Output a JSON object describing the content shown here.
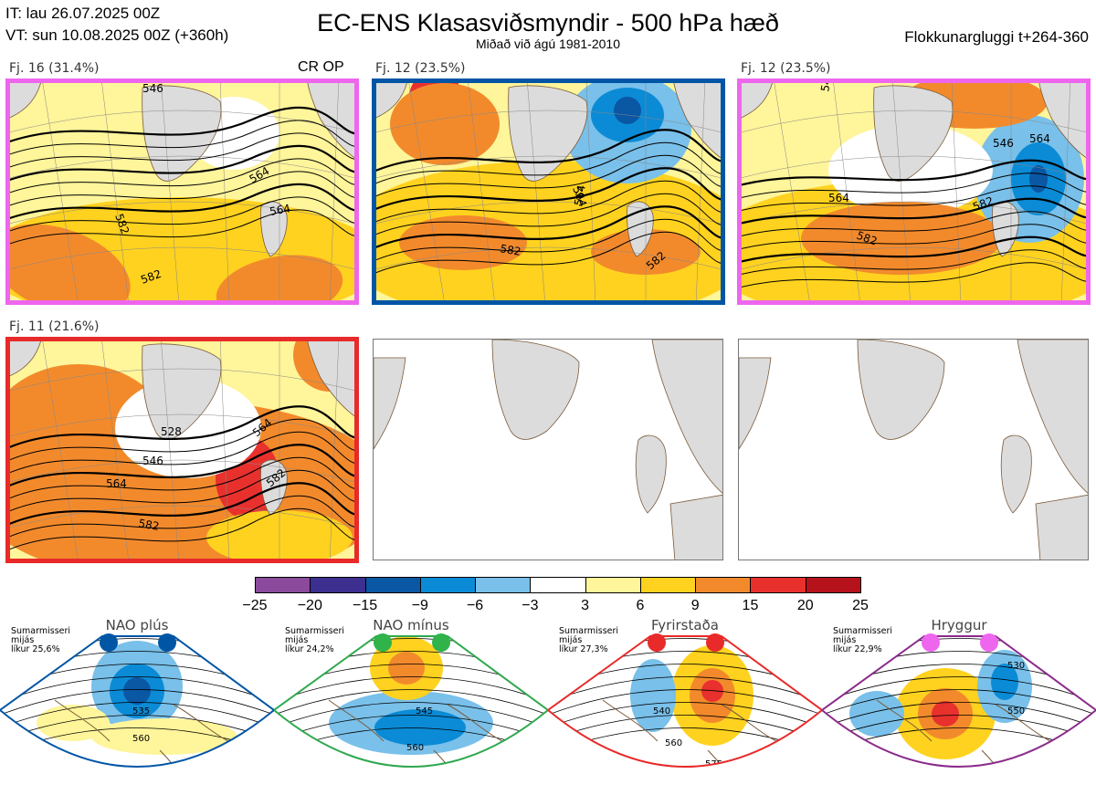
{
  "header": {
    "it": "IT: lau 26.07.2025 00Z",
    "vt": "VT: sun 10.08.2025 00Z  (+360h)",
    "title": "EC-ENS Klasasviðsmyndir - 500 hPa hæð",
    "subtitle": "Miðað við ágú 1981-2010",
    "cluster_window": "Flokkunargluggi t+264-360"
  },
  "colors": {
    "ocean": "#ffffff",
    "land": "#dcdcdc",
    "coast": "#7a5a3a",
    "contour": "#000000"
  },
  "panels": [
    {
      "label": "Fj. 16 (31.4%)",
      "flags": "CR OP",
      "frame_color": "#ee66ee",
      "contour_labels": [
        "546",
        "564",
        "582",
        "564",
        "582"
      ]
    },
    {
      "label": "Fj. 12 (23.5%)",
      "flags": "",
      "frame_color": "#0055a5",
      "contour_labels": [
        "564",
        "564",
        "582",
        "582"
      ]
    },
    {
      "label": "Fj. 12 (23.5%)",
      "flags": "",
      "frame_color": "#ee66ee",
      "contour_labels": [
        "546",
        "546",
        "564",
        "564",
        "582",
        "582"
      ]
    },
    {
      "label": "Fj. 11 (21.6%)",
      "flags": "",
      "frame_color": "#e82a2a",
      "contour_labels": [
        "528",
        "546",
        "564",
        "564",
        "582",
        "582"
      ]
    },
    {
      "label": "",
      "flags": "",
      "frame_color": "",
      "contour_labels": []
    },
    {
      "label": "",
      "flags": "",
      "frame_color": "",
      "contour_labels": []
    }
  ],
  "chart_data": {
    "type": "heatmap",
    "title": "EC-ENS Klasasviðsmyndir - 500 hPa hæð",
    "colorbar": {
      "bounds": [
        -25,
        -20,
        -15,
        -9,
        -6,
        -3,
        3,
        6,
        9,
        15,
        20,
        25
      ],
      "tick_labels": [
        "−25",
        "−20",
        "−15",
        "−9",
        "−6",
        "−3",
        "3",
        "6",
        "9",
        "15",
        "20",
        "25"
      ],
      "colors": [
        "#8b4a9c",
        "#3d2f8f",
        "#0a57a4",
        "#0b8bd6",
        "#79c0ea",
        "#ffffff",
        "#fff59a",
        "#ffd21f",
        "#f28a2c",
        "#e8312d",
        "#b5121b"
      ]
    },
    "clusters": [
      {
        "label": "Fj. 16 (31.4%)",
        "percent": 31.4,
        "regime": "Hryggur"
      },
      {
        "label": "Fj. 12 (23.5%)",
        "percent": 23.5,
        "regime": "NAO plús"
      },
      {
        "label": "Fj. 12 (23.5%)",
        "percent": 23.5,
        "regime": "Hryggur"
      },
      {
        "label": "Fj. 11 (21.6%)",
        "percent": 21.6,
        "regime": "Fyrirstaða"
      }
    ]
  },
  "regimes": [
    {
      "name": "NAO plús",
      "note": [
        "Sumarmisseri",
        "mijás",
        "líkur 25,6%"
      ],
      "frame_color": "#0055a5",
      "dot_color": "#0055a5",
      "contour_labels": [
        "535",
        "560"
      ]
    },
    {
      "name": "NAO mínus",
      "note": [
        "Sumarmisseri",
        "mijás",
        "líkur 24,2%"
      ],
      "frame_color": "#2fa84f",
      "dot_color": "#2fb34a",
      "contour_labels": [
        "545",
        "560",
        "575"
      ]
    },
    {
      "name": "Fyrirstaða",
      "note": [
        "Sumarmisseri",
        "mijás",
        "líkur 27,3%"
      ],
      "frame_color": "#e82a2a",
      "dot_color": "#e82a2a",
      "contour_labels": [
        "540",
        "560",
        "575"
      ]
    },
    {
      "name": "Hryggur",
      "note": [
        "Sumarmisseri",
        "mijás",
        "líkur 22,9%"
      ],
      "frame_color": "#8a2a8a",
      "dot_color": "#ee66ee",
      "contour_labels": [
        "530",
        "550",
        "575"
      ]
    }
  ]
}
